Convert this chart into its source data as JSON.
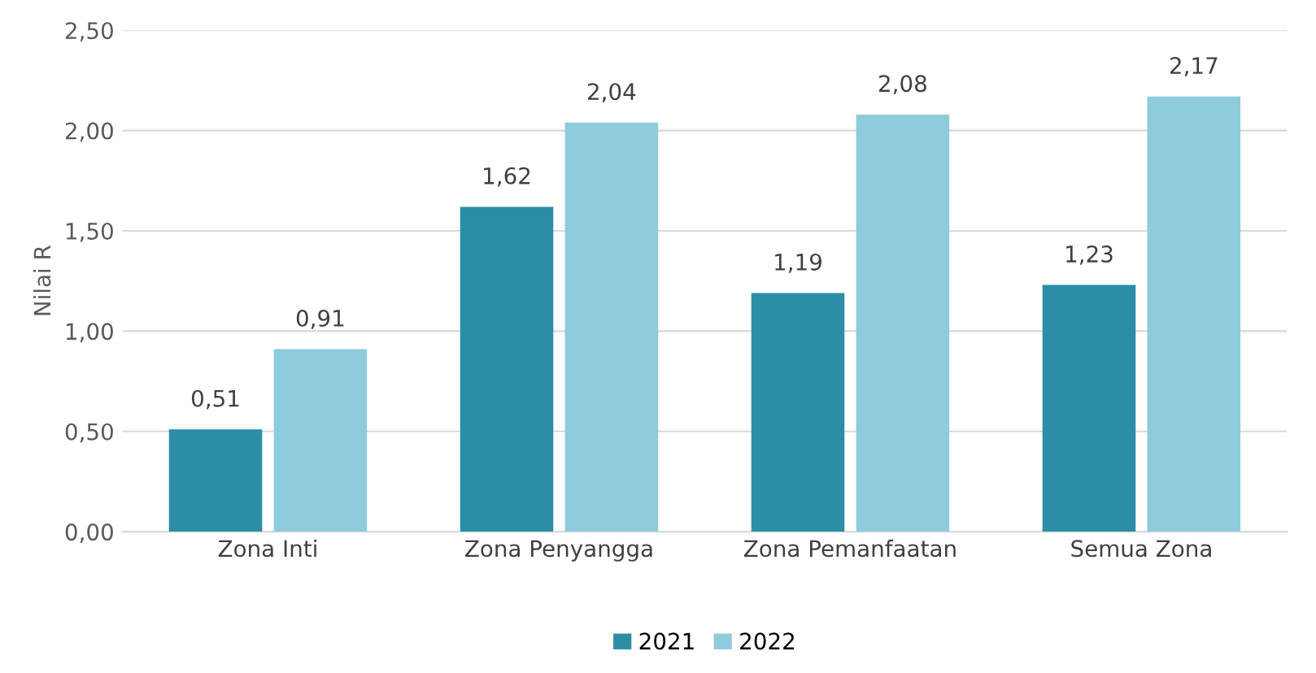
{
  "chart_data": {
    "type": "bar",
    "ylabel": "Nilai R",
    "categories": [
      "Zona Inti",
      "Zona Penyangga",
      "Zona Pemanfaatan",
      "Semua Zona"
    ],
    "series": [
      {
        "name": "2021",
        "color": "#2b8ea6",
        "values": [
          0.51,
          1.62,
          1.19,
          1.23
        ],
        "value_labels": [
          "0,51",
          "1,62",
          "1,19",
          "1,23"
        ]
      },
      {
        "name": "2022",
        "color": "#8ecbdc",
        "values": [
          0.91,
          2.04,
          2.08,
          2.17
        ],
        "value_labels": [
          "0,91",
          "2,04",
          "2,08",
          "2,17"
        ]
      }
    ],
    "ylim": [
      0,
      2.5
    ],
    "yticks": [
      {
        "value": 0,
        "label": "0,00"
      },
      {
        "value": 0.5,
        "label": "0,50"
      },
      {
        "value": 1,
        "label": "1,00"
      },
      {
        "value": 1.5,
        "label": "1,50"
      },
      {
        "value": 2,
        "label": "2,00"
      },
      {
        "value": 2.5,
        "label": "2,50"
      }
    ],
    "grid": "y",
    "legend": "bottom"
  }
}
